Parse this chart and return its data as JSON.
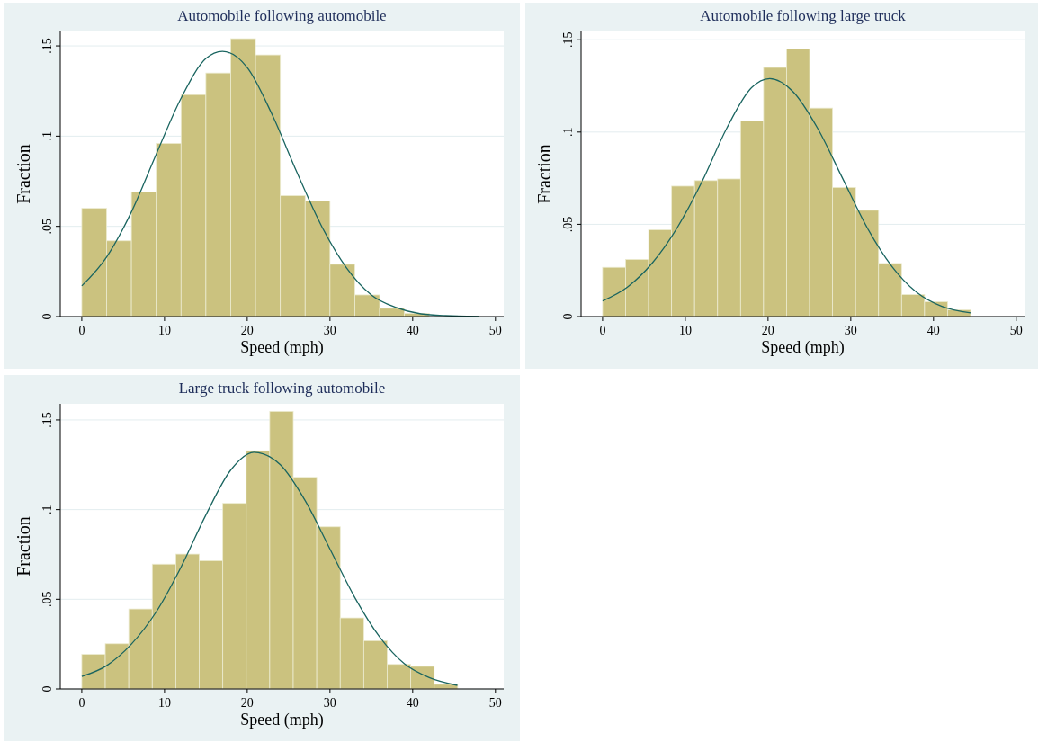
{
  "chart_data": [
    {
      "type": "histogram",
      "title": "Automobile following automobile",
      "xlabel": "Speed (mph)",
      "ylabel": "Fraction",
      "bins": [
        0,
        3,
        6,
        9,
        12,
        15,
        18,
        21,
        24,
        27,
        30,
        33,
        36,
        39,
        42
      ],
      "values": [
        0.06,
        0.042,
        0.069,
        0.096,
        0.123,
        0.135,
        0.154,
        0.145,
        0.067,
        0.064,
        0.029,
        0.012,
        0.0046,
        0.0018
      ],
      "color": "#cbc27f",
      "xlim": [
        -2.6,
        51
      ],
      "ylim": [
        0,
        0.158
      ],
      "xticks": [
        0,
        10,
        20,
        30,
        40,
        50
      ],
      "yticks": [
        {
          "value": 0,
          "label": "0"
        },
        {
          "value": 0.05,
          "label": ".05"
        },
        {
          "value": 0.1,
          "label": ".1"
        },
        {
          "value": 0.15,
          "label": ".15"
        }
      ],
      "grid": "y",
      "series": [
        {
          "type": "line",
          "color": "#1a6560",
          "x": [
            0,
            3,
            6,
            9,
            12,
            15,
            17,
            20,
            23,
            26,
            29,
            32,
            35,
            38,
            41,
            44,
            48
          ],
          "values": [
            0.017,
            0.033,
            0.058,
            0.09,
            0.121,
            0.143,
            0.147,
            0.138,
            0.112,
            0.08,
            0.05,
            0.027,
            0.012,
            0.005,
            0.0015,
            0.0005,
            0.0001
          ]
        }
      ]
    },
    {
      "type": "histogram",
      "title": "Automobile following large truck",
      "xlabel": "Speed (mph)",
      "ylabel": "Fraction",
      "bins": [
        0,
        2.78,
        5.56,
        8.34,
        11.12,
        13.9,
        16.68,
        19.46,
        22.24,
        25.02,
        27.8,
        30.58,
        33.36,
        36.14,
        38.92,
        41.7,
        44.48
      ],
      "values": [
        0.0267,
        0.031,
        0.047,
        0.0707,
        0.0737,
        0.0746,
        0.106,
        0.135,
        0.145,
        0.113,
        0.07,
        0.0576,
        0.0288,
        0.0119,
        0.008,
        0.0036
      ],
      "color": "#cbc27f",
      "xlim": [
        -2.6,
        51
      ],
      "ylim": [
        0,
        0.1545
      ],
      "xticks": [
        0,
        10,
        20,
        30,
        40,
        50
      ],
      "yticks": [
        {
          "value": 0,
          "label": "0"
        },
        {
          "value": 0.05,
          "label": ".05"
        },
        {
          "value": 0.1,
          "label": ".1"
        },
        {
          "value": 0.15,
          "label": ".15"
        }
      ],
      "grid": "y",
      "series": [
        {
          "type": "line",
          "color": "#1a6560",
          "x": [
            0,
            3,
            6,
            9,
            12,
            15,
            18,
            20.2,
            23,
            26,
            29,
            32,
            35,
            38,
            41,
            44.5
          ],
          "values": [
            0.0085,
            0.016,
            0.029,
            0.048,
            0.073,
            0.102,
            0.124,
            0.129,
            0.122,
            0.102,
            0.075,
            0.048,
            0.027,
            0.013,
            0.0055,
            0.002
          ]
        }
      ]
    },
    {
      "type": "histogram",
      "title": "Large truck following automobile",
      "xlabel": "Speed (mph)",
      "ylabel": "Fraction",
      "bins": [
        0,
        2.84,
        5.68,
        8.52,
        11.36,
        14.2,
        17.04,
        19.88,
        22.72,
        25.56,
        28.4,
        31.24,
        34.08,
        36.92,
        39.76,
        42.6,
        45.44
      ],
      "values": [
        0.0193,
        0.0252,
        0.0446,
        0.0696,
        0.0752,
        0.0715,
        0.1035,
        0.1328,
        0.1548,
        0.118,
        0.0904,
        0.0396,
        0.0269,
        0.0137,
        0.0126,
        0.0026
      ],
      "color": "#cbc27f",
      "xlim": [
        -2.6,
        51
      ],
      "ylim": [
        0,
        0.159
      ],
      "xticks": [
        0,
        10,
        20,
        30,
        40,
        50
      ],
      "yticks": [
        {
          "value": 0,
          "label": "0"
        },
        {
          "value": 0.05,
          "label": ".05"
        },
        {
          "value": 0.1,
          "label": ".1"
        },
        {
          "value": 0.15,
          "label": ".15"
        }
      ],
      "grid": "y",
      "series": [
        {
          "type": "line",
          "color": "#1a6560",
          "x": [
            0,
            3,
            6,
            9,
            12,
            15,
            18,
            20.8,
            24,
            27,
            30,
            33,
            36,
            39,
            42,
            45.4
          ],
          "values": [
            0.007,
            0.013,
            0.025,
            0.043,
            0.068,
            0.097,
            0.122,
            0.132,
            0.125,
            0.105,
            0.078,
            0.051,
            0.029,
            0.014,
            0.0063,
            0.002
          ]
        }
      ]
    }
  ]
}
